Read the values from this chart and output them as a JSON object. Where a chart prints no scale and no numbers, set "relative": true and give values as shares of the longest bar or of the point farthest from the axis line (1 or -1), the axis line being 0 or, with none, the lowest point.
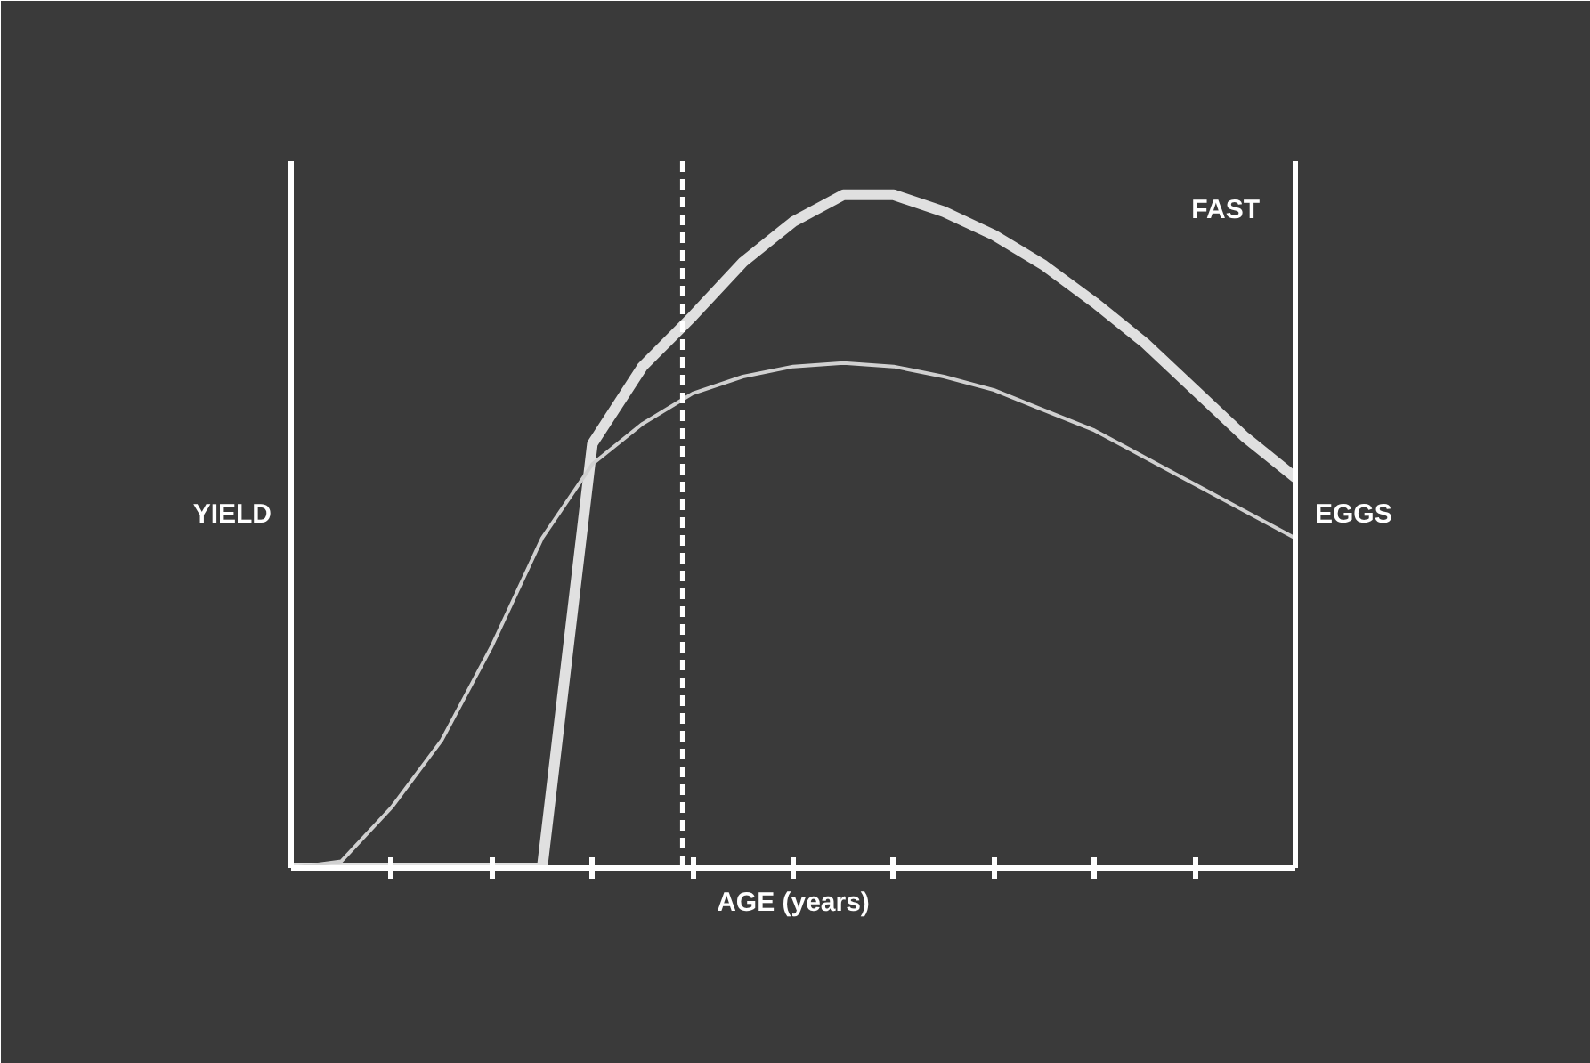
{
  "chart_data": {
    "type": "line",
    "relative": true,
    "xlabel": "AGE (years)",
    "ylabel": "YIELD",
    "y2label": "EGGS",
    "categories": [
      null,
      null,
      null,
      null,
      null,
      null,
      null,
      null,
      null,
      null,
      null,
      null,
      null,
      null,
      null,
      null,
      null,
      null,
      null,
      null,
      null
    ],
    "grid": false,
    "legend": false,
    "series": [
      {
        "name": "FAST",
        "color": "#e0e0e0",
        "values": [
          0,
          0,
          0,
          0,
          0,
          0,
          0.63,
          0.745,
          0.82,
          0.9,
          0.96,
          1,
          1,
          0.975,
          0.94,
          0.895,
          0.84,
          0.78,
          0.71,
          0.64,
          0.58
        ]
      },
      {
        "color": "#d0d0d0",
        "values": [
          0,
          0.01,
          0.09,
          0.19,
          0.33,
          0.49,
          0.6,
          0.66,
          0.705,
          0.73,
          0.745,
          0.75,
          0.745,
          0.73,
          0.71,
          0.68,
          0.65,
          0.61,
          0.57,
          0.53,
          0.49
        ]
      }
    ]
  }
}
